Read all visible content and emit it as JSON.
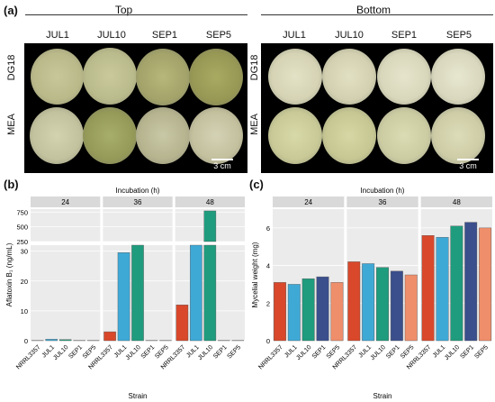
{
  "figure": {
    "panel_a": {
      "label": "(a)",
      "top_title": "Top",
      "bottom_title": "Bottom",
      "columns": [
        "JUL1",
        "JUL10",
        "SEP1",
        "SEP5"
      ],
      "rows": [
        "DG18",
        "MEA"
      ],
      "scale_label": "3 cm"
    },
    "panel_b": {
      "label": "(b)"
    },
    "panel_c": {
      "label": "(c)"
    }
  },
  "chart_data": [
    {
      "type": "bar",
      "title": "",
      "facet_title": "Incubation (h)",
      "facets": [
        "24",
        "36",
        "48"
      ],
      "categories": [
        "NRRL3357",
        "JUL1",
        "JUL10",
        "SEP1",
        "SEP5"
      ],
      "xlabel": "Strain",
      "ylabel": "Aflatoxin B₁ (ng/mL)",
      "y_break": true,
      "ylim_lower": [
        0,
        32
      ],
      "yticks_lower": [
        "0",
        "10",
        "20",
        "30"
      ],
      "ylim_upper": [
        250,
        800
      ],
      "yticks_upper": [
        "250",
        "500",
        "750"
      ],
      "colors": [
        "#d9482b",
        "#3fa9d6",
        "#1f9c7d",
        "#3a4f8c",
        "#ef8e6b"
      ],
      "series": [
        {
          "facet": "24",
          "values": [
            0.1,
            0.5,
            0.4,
            0.1,
            0.1
          ]
        },
        {
          "facet": "36",
          "values": [
            3.0,
            29.5,
            230,
            0.1,
            0.1
          ]
        },
        {
          "facet": "48",
          "values": [
            12.0,
            230,
            770,
            0.1,
            0.1
          ]
        }
      ]
    },
    {
      "type": "bar",
      "title": "",
      "facet_title": "Incubation (h)",
      "facets": [
        "24",
        "36",
        "48"
      ],
      "categories": [
        "NRRL3357",
        "JUL1",
        "JUL10",
        "SEP1",
        "SEP5"
      ],
      "xlabel": "Strain",
      "ylabel": "Mycelial weight (mg)",
      "ylim": [
        0,
        7
      ],
      "yticks": [
        "0",
        "2",
        "4",
        "6"
      ],
      "colors": [
        "#d9482b",
        "#3fa9d6",
        "#1f9c7d",
        "#3a4f8c",
        "#ef8e6b"
      ],
      "series": [
        {
          "facet": "24",
          "values": [
            3.1,
            3.0,
            3.3,
            3.4,
            3.1
          ]
        },
        {
          "facet": "36",
          "values": [
            4.2,
            4.1,
            3.9,
            3.7,
            3.5
          ]
        },
        {
          "facet": "48",
          "values": [
            5.6,
            5.5,
            6.1,
            6.3,
            6.0
          ]
        }
      ]
    }
  ]
}
